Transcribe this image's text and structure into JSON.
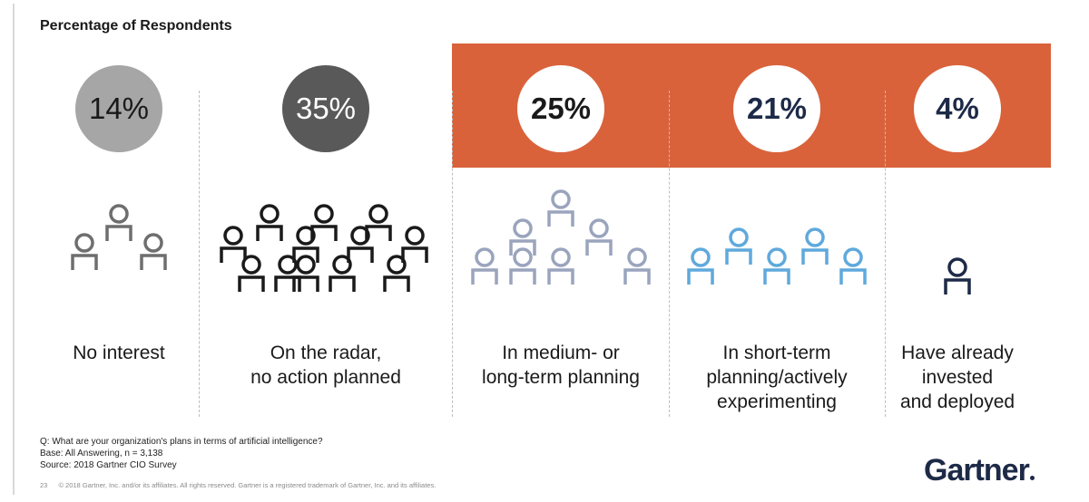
{
  "header": {
    "title": "Percentage of Respondents"
  },
  "chart_data": {
    "type": "bar",
    "title": "Percentage of Respondents",
    "categories": [
      "No interest",
      "On the radar, no action planned",
      "In medium- or long-term planning",
      "In short-term planning/actively experimenting",
      "Have already invested and deployed"
    ],
    "values": [
      14,
      35,
      25,
      21,
      4
    ],
    "unit": "%",
    "value_labels": [
      "14%",
      "35%",
      "25%",
      "21%",
      "4%"
    ],
    "label_lines": [
      [
        "No interest"
      ],
      [
        "On the radar,",
        "no action planned"
      ],
      [
        "In medium- or",
        "long-term planning"
      ],
      [
        "In short-term",
        "planning/actively",
        "experimenting"
      ],
      [
        "Have already",
        "invested",
        "and deployed"
      ]
    ],
    "people_counts": [
      3,
      12,
      7,
      5,
      1
    ],
    "bubble_fill": [
      "#a6a6a6",
      "#595959",
      "#ffffff",
      "#ffffff",
      "#ffffff"
    ],
    "bubble_text": [
      "#1a1a1a",
      "#ffffff",
      "#1a1a1a",
      "#1d2a47",
      "#1d2a47"
    ],
    "icon_colors": [
      "#6e6e6e",
      "#1a1a1a",
      "#9aa4bd",
      "#5fa9dc",
      "#1d2a47"
    ],
    "highlight_color": "#d9623b"
  },
  "footer": {
    "question": "Q: What are your organization's plans in terms of artificial intelligence?",
    "base": "Base: All Answering, n = 3,138",
    "source": "Source: 2018 Gartner CIO Survey",
    "page_number": "23",
    "copyright": "© 2018 Gartner, Inc. and/or its affiliates. All rights reserved. Gartner is a registered trademark of Gartner, Inc. and its affiliates.",
    "logo": "Gartner"
  }
}
